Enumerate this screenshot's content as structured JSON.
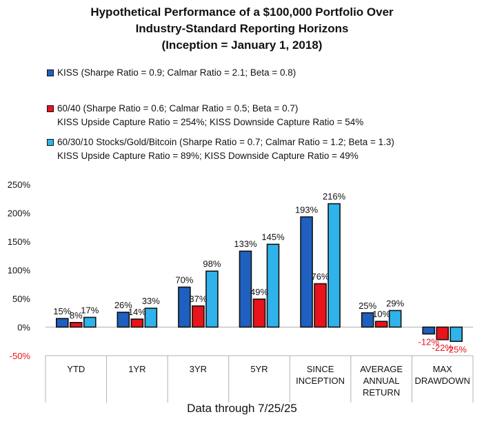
{
  "title": {
    "line1": "Hypothetical Performance of a $100,000 Portfolio Over",
    "line2": "Industry-Standard Reporting Horizons",
    "line3": "(Inception = January 1, 2018)"
  },
  "legend": [
    {
      "text": "KISS (Sharpe Ratio = 0.9; Calmar Ratio = 2.1; Beta = 0.8)",
      "sub": "",
      "color": "#1f5fbf"
    },
    {
      "text": "60/40 (Sharpe Ratio = 0.6; Calmar Ratio = 0.5; Beta = 0.7)",
      "sub": "KISS Upside Capture Ratio = 254%; KISS Downside Capture Ratio = 54%",
      "color": "#e8131b"
    },
    {
      "text": "60/30/10 Stocks/Gold/Bitcoin (Sharpe Ratio = 0.7; Calmar Ratio = 1.2; Beta = 1.3)",
      "sub": "KISS Upside Capture Ratio = 89%; KISS Downside Capture Ratio = 49%",
      "color": "#2fb3ea"
    }
  ],
  "footer": "Data through 7/25/25",
  "chart_data": {
    "type": "bar",
    "categories": [
      [
        "YTD"
      ],
      [
        "1YR"
      ],
      [
        "3YR"
      ],
      [
        "5YR"
      ],
      [
        "SINCE",
        "INCEPTION"
      ],
      [
        "AVERAGE",
        "ANNUAL",
        "RETURN"
      ],
      [
        "MAX",
        "DRAWDOWN"
      ]
    ],
    "series": [
      {
        "name": "KISS",
        "values": [
          15,
          26,
          70,
          133,
          193,
          25,
          -12
        ],
        "labels": [
          "15%",
          "26%",
          "70%",
          "133%",
          "193%",
          "25%",
          "-12%"
        ],
        "color": "#1f5fbf"
      },
      {
        "name": "60/40",
        "values": [
          8,
          14,
          37,
          49,
          76,
          10,
          -22
        ],
        "labels": [
          "8%",
          "14%",
          "37%",
          "49%",
          "76%",
          "10%",
          "-22%"
        ],
        "color": "#e8131b"
      },
      {
        "name": "60/30/10 Stocks/Gold/Bitcoin",
        "values": [
          17,
          33,
          98,
          145,
          216,
          29,
          -25
        ],
        "labels": [
          "17%",
          "33%",
          "98%",
          "145%",
          "216%",
          "29%",
          "-25%"
        ],
        "color": "#2fb3ea"
      }
    ],
    "y_ticks": [
      {
        "value": 250,
        "label": "250%"
      },
      {
        "value": 200,
        "label": "200%"
      },
      {
        "value": 150,
        "label": "150%"
      },
      {
        "value": 100,
        "label": "100%"
      },
      {
        "value": 50,
        "label": "50%"
      },
      {
        "value": 0,
        "label": "0%"
      },
      {
        "value": -50,
        "label": "-50%"
      }
    ],
    "ylim": [
      -50,
      250
    ],
    "negative_label_color": "#e8131b",
    "grid": false
  }
}
